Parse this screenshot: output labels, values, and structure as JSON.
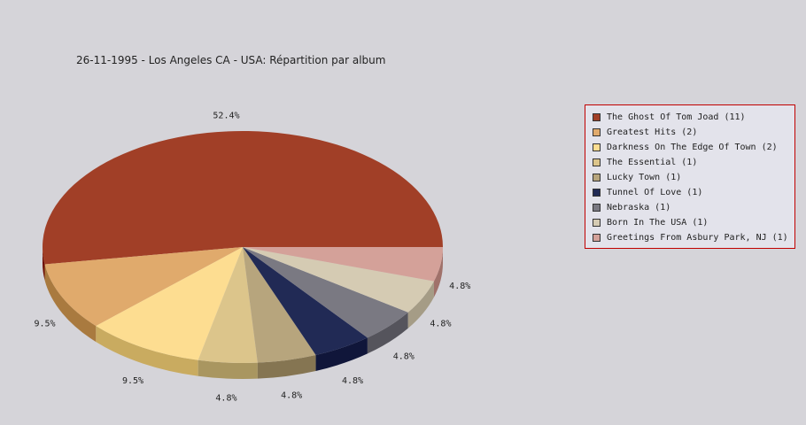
{
  "chart_data": {
    "type": "pie",
    "title": "26-11-1995 - Los Angeles CA - USA:  Répartition par album",
    "legend_position": "right",
    "slices": [
      {
        "label": "The Ghost Of Tom Joad (11)",
        "value": 11,
        "percent_label": "52.4%",
        "color": "#a13f27",
        "side_color": "#6e0f04"
      },
      {
        "label": "Greatest Hits (2)",
        "value": 2,
        "percent_label": "9.5%",
        "color": "#e0aa6c",
        "side_color": "#a97a3f"
      },
      {
        "label": "Darkness On The Edge Of Town (2)",
        "value": 2,
        "percent_label": "9.5%",
        "color": "#fddd91",
        "side_color": "#c9ab60"
      },
      {
        "label": "The Essential (1)",
        "value": 1,
        "percent_label": "4.8%",
        "color": "#dcc58b",
        "side_color": "#a99660"
      },
      {
        "label": "Lucky Town (1)",
        "value": 1,
        "percent_label": "4.8%",
        "color": "#b7a57d",
        "side_color": "#857552"
      },
      {
        "label": "Tunnel Of Love (1)",
        "value": 1,
        "percent_label": "4.8%",
        "color": "#212a55",
        "side_color": "#10163a"
      },
      {
        "label": "Nebraska (1)",
        "value": 1,
        "percent_label": "4.8%",
        "color": "#7a7982",
        "side_color": "#55545c"
      },
      {
        "label": "Born In The USA (1)",
        "value": 1,
        "percent_label": "4.8%",
        "color": "#d5cbb3",
        "side_color": "#a59c86"
      },
      {
        "label": "Greetings From Asbury Park, NJ (1)",
        "value": 1,
        "percent_label": "4.8%",
        "color": "#d4a199",
        "side_color": "#a0716a"
      }
    ]
  }
}
